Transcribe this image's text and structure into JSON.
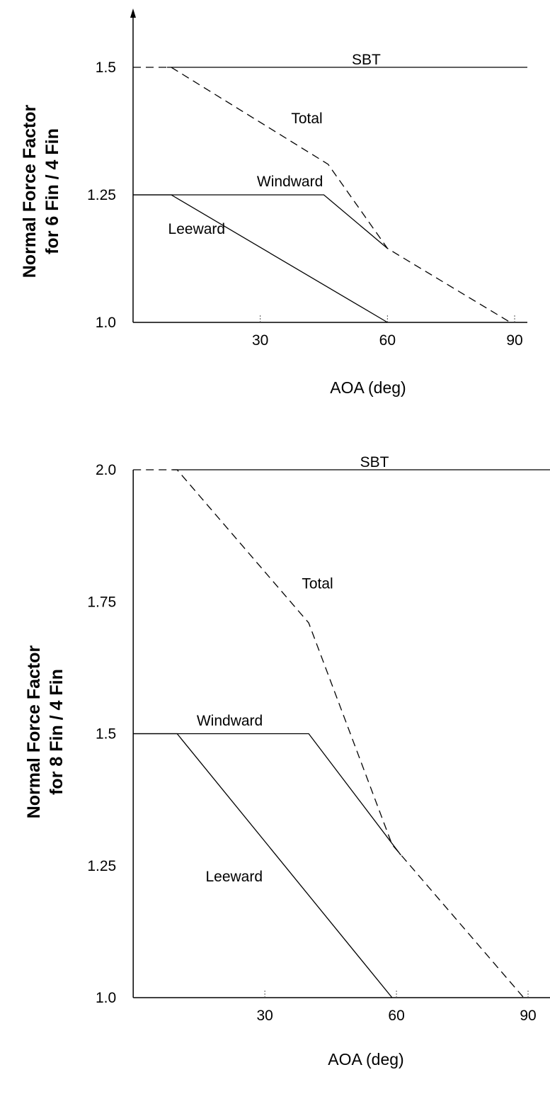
{
  "chart_data": [
    {
      "type": "line",
      "ylabel_lines": [
        "Normal Force Factor",
        "for 6 Fin / 4 Fin"
      ],
      "xlabel": "AOA (deg)",
      "xlim": [
        -1,
        93
      ],
      "ylim": [
        1.0,
        1.5
      ],
      "x_ticks": [
        30,
        60,
        90
      ],
      "y_ticks": [
        {
          "value": 1.0,
          "label": "1.0"
        },
        {
          "value": 1.25,
          "label": "1.25"
        },
        {
          "value": 1.5,
          "label": "1.5"
        }
      ],
      "series": [
        {
          "name": "SBT",
          "style": "solid",
          "x": [
            8,
            93
          ],
          "y": [
            1.5,
            1.5
          ],
          "label_at": [
            55,
            1.5
          ]
        },
        {
          "name": "Total",
          "style": "dashed",
          "x": [
            0,
            9,
            46,
            60,
            89
          ],
          "y": [
            1.5,
            1.5,
            1.31,
            1.145,
            1.0
          ],
          "label_at": [
            41,
            1.385
          ]
        },
        {
          "name": "Windward",
          "style": "solid",
          "x": [
            0,
            45,
            60
          ],
          "y": [
            1.25,
            1.25,
            1.145
          ],
          "label_at": [
            37,
            1.261
          ]
        },
        {
          "name": "Leeward",
          "style": "solid",
          "x": [
            0,
            9,
            60
          ],
          "y": [
            1.25,
            1.25,
            1.0
          ],
          "label_at": [
            15,
            1.168
          ]
        }
      ]
    },
    {
      "type": "line",
      "ylabel_lines": [
        "Normal Force Factor",
        "for 8 Fin / 4 Fin"
      ],
      "xlabel": "AOA (deg)",
      "xlim": [
        -1,
        95
      ],
      "ylim": [
        1.0,
        2.0
      ],
      "x_ticks": [
        30,
        60,
        90
      ],
      "y_ticks": [
        {
          "value": 1.0,
          "label": "1.0"
        },
        {
          "value": 1.25,
          "label": "1.25"
        },
        {
          "value": 1.5,
          "label": "1.5"
        },
        {
          "value": 1.75,
          "label": "1.75"
        },
        {
          "value": 2.0,
          "label": "2.0"
        }
      ],
      "series": [
        {
          "name": "SBT",
          "style": "solid",
          "x": [
            9,
            101
          ],
          "y": [
            2.0,
            2.0
          ],
          "label_at": [
            55,
            2.0
          ]
        },
        {
          "name": "Total",
          "style": "dashed",
          "x": [
            0,
            10,
            40,
            59,
            89
          ],
          "y": [
            2.0,
            2.0,
            1.71,
            1.29,
            1.0
          ],
          "label_at": [
            42,
            1.77
          ]
        },
        {
          "name": "Windward",
          "style": "solid",
          "x": [
            0,
            40,
            61
          ],
          "y": [
            1.5,
            1.5,
            1.27
          ],
          "label_at": [
            22,
            1.51
          ]
        },
        {
          "name": "Leeward",
          "style": "solid",
          "x": [
            0,
            10,
            59
          ],
          "y": [
            1.5,
            1.5,
            1.0
          ],
          "label_at": [
            23,
            1.215
          ]
        }
      ]
    }
  ]
}
